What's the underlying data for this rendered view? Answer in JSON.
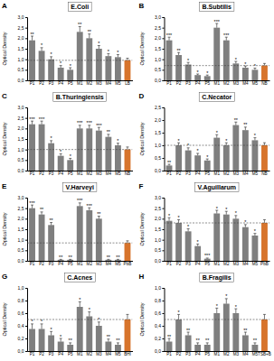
{
  "chart_data": [
    {
      "type": "bar",
      "label": "A",
      "title": "E.Coli",
      "y_label": "Optical Density",
      "categories": [
        "P1",
        "P2",
        "P3",
        "P4",
        "P5",
        "M1",
        "M2",
        "M3",
        "M4",
        "M5",
        "LB"
      ],
      "values": [
        1.9,
        1.4,
        1.0,
        0.6,
        0.5,
        2.3,
        2.0,
        1.5,
        1.15,
        1.1,
        0.95
      ],
      "errors": [
        0.2,
        0.15,
        0.12,
        0.1,
        0.1,
        0.25,
        0.2,
        0.15,
        0.12,
        0.12,
        0.1
      ],
      "significance": [
        "**",
        "*",
        "*",
        "*",
        "*",
        "**",
        "**",
        "*",
        "*",
        "*",
        null
      ],
      "colors": [
        "#7f7f7f",
        "#7f7f7f",
        "#7f7f7f",
        "#7f7f7f",
        "#7f7f7f",
        "#7f7f7f",
        "#7f7f7f",
        "#7f7f7f",
        "#7f7f7f",
        "#7f7f7f",
        "#d7742c"
      ],
      "ylim": [
        0,
        3
      ],
      "yticks": [
        {
          "value": 0,
          "label": "0,0"
        },
        {
          "value": 0.5,
          "label": "0,5"
        },
        {
          "value": 1,
          "label": "1,0"
        },
        {
          "value": 1.5,
          "label": "1,5"
        },
        {
          "value": 2,
          "label": "2,0"
        },
        {
          "value": 2.5,
          "label": "2,5"
        },
        {
          "value": 3,
          "label": "3,0"
        }
      ]
    },
    {
      "type": "bar",
      "label": "B",
      "title": "B.Subtilis",
      "y_label": "Optical Density",
      "categories": [
        "P1",
        "P2",
        "P3",
        "P4",
        "P5",
        "M1",
        "M2",
        "M3",
        "M4",
        "M5",
        "NB"
      ],
      "values": [
        1.9,
        1.2,
        0.75,
        0.25,
        0.2,
        2.5,
        1.9,
        0.8,
        0.6,
        0.5,
        0.7
      ],
      "errors": [
        0.15,
        0.12,
        0.1,
        0.05,
        0.05,
        0.2,
        0.15,
        0.1,
        0.08,
        0.08,
        0.1
      ],
      "significance": [
        "***",
        "**",
        "*",
        "*",
        "*",
        "***",
        "***",
        "*",
        "*",
        "*",
        null
      ],
      "colors": [
        "#7f7f7f",
        "#7f7f7f",
        "#7f7f7f",
        "#7f7f7f",
        "#7f7f7f",
        "#7f7f7f",
        "#7f7f7f",
        "#7f7f7f",
        "#7f7f7f",
        "#7f7f7f",
        "#d7742c"
      ],
      "ylim": [
        0,
        3
      ],
      "yticks": [
        {
          "value": 0,
          "label": "0,0"
        },
        {
          "value": 0.5,
          "label": "0,5"
        },
        {
          "value": 1,
          "label": "1,0"
        },
        {
          "value": 1.5,
          "label": "1,5"
        },
        {
          "value": 2,
          "label": "2,0"
        },
        {
          "value": 2.5,
          "label": "2,5"
        },
        {
          "value": 3,
          "label": "3,0"
        }
      ]
    },
    {
      "type": "bar",
      "label": "C",
      "title": "B.Thuringiensis",
      "y_label": "Optical Density",
      "categories": [
        "P1",
        "P2",
        "P3",
        "P4",
        "P5",
        "M1",
        "M2",
        "M3",
        "M4",
        "M5",
        "NB"
      ],
      "values": [
        2.2,
        2.2,
        1.3,
        0.7,
        0.5,
        2.0,
        2.0,
        1.9,
        1.6,
        1.2,
        1.0
      ],
      "errors": [
        0.15,
        0.15,
        0.12,
        0.1,
        0.08,
        0.15,
        0.15,
        0.15,
        0.12,
        0.1,
        0.12
      ],
      "significance": [
        "***",
        "***",
        "*",
        "*",
        "*",
        "***",
        "***",
        "***",
        "**",
        "*",
        null
      ],
      "colors": [
        "#7f7f7f",
        "#7f7f7f",
        "#7f7f7f",
        "#7f7f7f",
        "#7f7f7f",
        "#7f7f7f",
        "#7f7f7f",
        "#7f7f7f",
        "#7f7f7f",
        "#7f7f7f",
        "#d7742c"
      ],
      "ylim": [
        0,
        3
      ],
      "yticks": [
        {
          "value": 0,
          "label": "0,0"
        },
        {
          "value": 0.5,
          "label": "0,5"
        },
        {
          "value": 1,
          "label": "1,0"
        },
        {
          "value": 1.5,
          "label": "1,5"
        },
        {
          "value": 2,
          "label": "2,0"
        },
        {
          "value": 2.5,
          "label": "2,5"
        },
        {
          "value": 3,
          "label": "3,0"
        }
      ]
    },
    {
      "type": "bar",
      "label": "D",
      "title": "C.Necator",
      "y_label": "Optical Density",
      "categories": [
        "P1",
        "P2",
        "P3",
        "P4",
        "P5",
        "M1",
        "M2",
        "M3",
        "M4",
        "M5",
        "NB"
      ],
      "values": [
        0.2,
        1.0,
        0.8,
        0.6,
        0.4,
        1.3,
        1.0,
        1.8,
        1.6,
        1.2,
        1.0
      ],
      "errors": [
        0.05,
        0.1,
        0.1,
        0.08,
        0.06,
        0.12,
        0.1,
        0.12,
        0.12,
        0.1,
        0.1
      ],
      "significance": [
        "**",
        "*",
        "*",
        "*",
        "*",
        "*",
        "*",
        "**",
        "**",
        "*",
        null
      ],
      "colors": [
        "#7f7f7f",
        "#7f7f7f",
        "#7f7f7f",
        "#7f7f7f",
        "#7f7f7f",
        "#7f7f7f",
        "#7f7f7f",
        "#7f7f7f",
        "#7f7f7f",
        "#7f7f7f",
        "#d7742c"
      ],
      "ylim": [
        0,
        2.5
      ],
      "yticks": [
        {
          "value": 0,
          "label": "0,0"
        },
        {
          "value": 0.5,
          "label": "0,5"
        },
        {
          "value": 1,
          "label": "1,0"
        },
        {
          "value": 1.5,
          "label": "1,5"
        },
        {
          "value": 2,
          "label": "2,0"
        },
        {
          "value": 2.5,
          "label": "2,5"
        }
      ]
    },
    {
      "type": "bar",
      "label": "E",
      "title": "V.Harveyi",
      "y_label": "Optical Density",
      "categories": [
        "P1",
        "P2",
        "P3",
        "P4",
        "P5",
        "M1",
        "M2",
        "M3",
        "M4",
        "M5",
        "PbB"
      ],
      "values": [
        2.5,
        2.2,
        1.7,
        0.05,
        0.05,
        2.6,
        2.4,
        2.0,
        0.05,
        0.05,
        0.85
      ],
      "errors": [
        0.15,
        0.12,
        0.12,
        0.02,
        0.02,
        0.15,
        0.12,
        0.12,
        0.02,
        0.02,
        0.1
      ],
      "significance": [
        "***",
        "**",
        "**",
        "**",
        "**",
        "***",
        "***",
        "**",
        "**",
        "**",
        null
      ],
      "colors": [
        "#7f7f7f",
        "#7f7f7f",
        "#7f7f7f",
        "#7f7f7f",
        "#7f7f7f",
        "#7f7f7f",
        "#7f7f7f",
        "#7f7f7f",
        "#7f7f7f",
        "#7f7f7f",
        "#d7742c"
      ],
      "ylim": [
        0,
        3
      ],
      "yticks": [
        {
          "value": 0,
          "label": "0,0"
        },
        {
          "value": 0.5,
          "label": "0,5"
        },
        {
          "value": 1,
          "label": "1,0"
        },
        {
          "value": 1.5,
          "label": "1,5"
        },
        {
          "value": 2,
          "label": "2,0"
        },
        {
          "value": 2.5,
          "label": "2,5"
        },
        {
          "value": 3,
          "label": "3,0"
        }
      ]
    },
    {
      "type": "bar",
      "label": "F",
      "title": "V.Aguillarum",
      "y_label": "Optical Density",
      "categories": [
        "P1",
        "P2",
        "P3",
        "P4",
        "P5",
        "M1",
        "M2",
        "M3",
        "M4",
        "M5",
        "PbB"
      ],
      "values": [
        1.9,
        1.8,
        1.4,
        0.7,
        0.1,
        2.25,
        2.2,
        2.0,
        1.6,
        1.2,
        1.8
      ],
      "errors": [
        0.15,
        0.15,
        0.12,
        0.1,
        0.03,
        0.15,
        0.15,
        0.15,
        0.12,
        0.1,
        0.15
      ],
      "significance": [
        "*",
        "*",
        "*",
        "*",
        "***",
        "*",
        "*",
        "*",
        "*",
        "*",
        null
      ],
      "colors": [
        "#7f7f7f",
        "#7f7f7f",
        "#7f7f7f",
        "#7f7f7f",
        "#7f7f7f",
        "#7f7f7f",
        "#7f7f7f",
        "#7f7f7f",
        "#7f7f7f",
        "#7f7f7f",
        "#d7742c"
      ],
      "ylim": [
        0,
        3
      ],
      "yticks": [
        {
          "value": 0,
          "label": "0,0"
        },
        {
          "value": 0.5,
          "label": "0,5"
        },
        {
          "value": 1,
          "label": "1,0"
        },
        {
          "value": 1.5,
          "label": "1,5"
        },
        {
          "value": 2,
          "label": "2,0"
        },
        {
          "value": 2.5,
          "label": "2,5"
        },
        {
          "value": 3,
          "label": "3,0"
        }
      ]
    },
    {
      "type": "bar",
      "label": "G",
      "title": "C.Acnes",
      "y_label": "Optical Density",
      "categories": [
        "P1",
        "P2",
        "P3",
        "P4",
        "P5",
        "M1",
        "M2",
        "M3",
        "M4",
        "M5",
        "BHI"
      ],
      "values": [
        0.35,
        0.35,
        0.25,
        0.15,
        0.1,
        0.7,
        0.55,
        0.4,
        0.15,
        0.1,
        0.5
      ],
      "errors": [
        0.08,
        0.08,
        0.06,
        0.05,
        0.03,
        0.08,
        0.07,
        0.06,
        0.04,
        0.03,
        0.08
      ],
      "significance": [
        "*",
        "*",
        "*",
        "*",
        "**",
        "*",
        "*",
        "*",
        "**",
        "**",
        null
      ],
      "colors": [
        "#7f7f7f",
        "#7f7f7f",
        "#7f7f7f",
        "#7f7f7f",
        "#7f7f7f",
        "#7f7f7f",
        "#7f7f7f",
        "#7f7f7f",
        "#7f7f7f",
        "#7f7f7f",
        "#d7742c"
      ],
      "ylim": [
        0,
        1
      ],
      "yticks": [
        {
          "value": 0,
          "label": "0,0"
        },
        {
          "value": 0.2,
          "label": "0,2"
        },
        {
          "value": 0.4,
          "label": "0,4"
        },
        {
          "value": 0.6,
          "label": "0,6"
        },
        {
          "value": 0.8,
          "label": "0,8"
        },
        {
          "value": 1,
          "label": "1,0"
        }
      ]
    },
    {
      "type": "bar",
      "label": "H",
      "title": "B.Fragilis",
      "y_label": "Optical Density",
      "categories": [
        "P1",
        "P2",
        "P3",
        "P4",
        "P5",
        "M1",
        "M2",
        "M3",
        "M4",
        "M5",
        "TSB+B"
      ],
      "values": [
        0.15,
        0.5,
        0.25,
        0.1,
        0.1,
        0.6,
        0.75,
        0.6,
        0.25,
        0.1,
        0.5
      ],
      "errors": [
        0.05,
        0.08,
        0.05,
        0.03,
        0.03,
        0.08,
        0.08,
        0.07,
        0.05,
        0.03,
        0.08
      ],
      "significance": [
        "**",
        "*",
        "**",
        "**",
        "**",
        "*",
        "*",
        "*",
        "**",
        "**",
        null
      ],
      "colors": [
        "#7f7f7f",
        "#7f7f7f",
        "#7f7f7f",
        "#7f7f7f",
        "#7f7f7f",
        "#7f7f7f",
        "#7f7f7f",
        "#7f7f7f",
        "#7f7f7f",
        "#7f7f7f",
        "#d7742c"
      ],
      "ylim": [
        0,
        1
      ],
      "yticks": [
        {
          "value": 0,
          "label": "0,0"
        },
        {
          "value": 0.2,
          "label": "0,2"
        },
        {
          "value": 0.4,
          "label": "0,4"
        },
        {
          "value": 0.6,
          "label": "0,6"
        },
        {
          "value": 0.8,
          "label": "0,8"
        },
        {
          "value": 1,
          "label": "1,0"
        }
      ]
    }
  ]
}
